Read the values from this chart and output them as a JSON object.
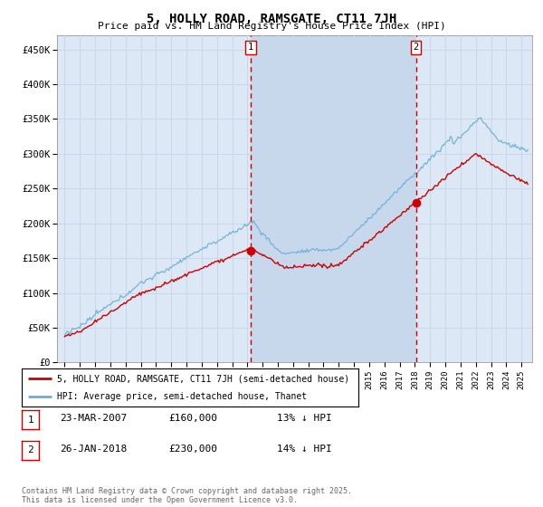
{
  "title": "5, HOLLY ROAD, RAMSGATE, CT11 7JH",
  "subtitle": "Price paid vs. HM Land Registry's House Price Index (HPI)",
  "ylim": [
    0,
    470000
  ],
  "yticks": [
    0,
    50000,
    100000,
    150000,
    200000,
    250000,
    300000,
    350000,
    400000,
    450000
  ],
  "ytick_labels": [
    "£0",
    "£50K",
    "£100K",
    "£150K",
    "£200K",
    "£250K",
    "£300K",
    "£350K",
    "£400K",
    "£450K"
  ],
  "hpi_color": "#6baed6",
  "price_color": "#cc0000",
  "vline_color": "#cc0000",
  "grid_color": "#c8d8e8",
  "background_color": "#dce8f5",
  "shade_color": "#c8d8ec",
  "sale1_x": 2007.22,
  "sale1_y": 160000,
  "sale2_x": 2018.07,
  "sale2_y": 230000,
  "legend_line1": "5, HOLLY ROAD, RAMSGATE, CT11 7JH (semi-detached house)",
  "legend_line2": "HPI: Average price, semi-detached house, Thanet",
  "table_row1": [
    "1",
    "23-MAR-2007",
    "£160,000",
    "13% ↓ HPI"
  ],
  "table_row2": [
    "2",
    "26-JAN-2018",
    "£230,000",
    "14% ↓ HPI"
  ],
  "footnote": "Contains HM Land Registry data © Crown copyright and database right 2025.\nThis data is licensed under the Open Government Licence v3.0.",
  "xlim_start": 1994.5,
  "xlim_end": 2025.7
}
